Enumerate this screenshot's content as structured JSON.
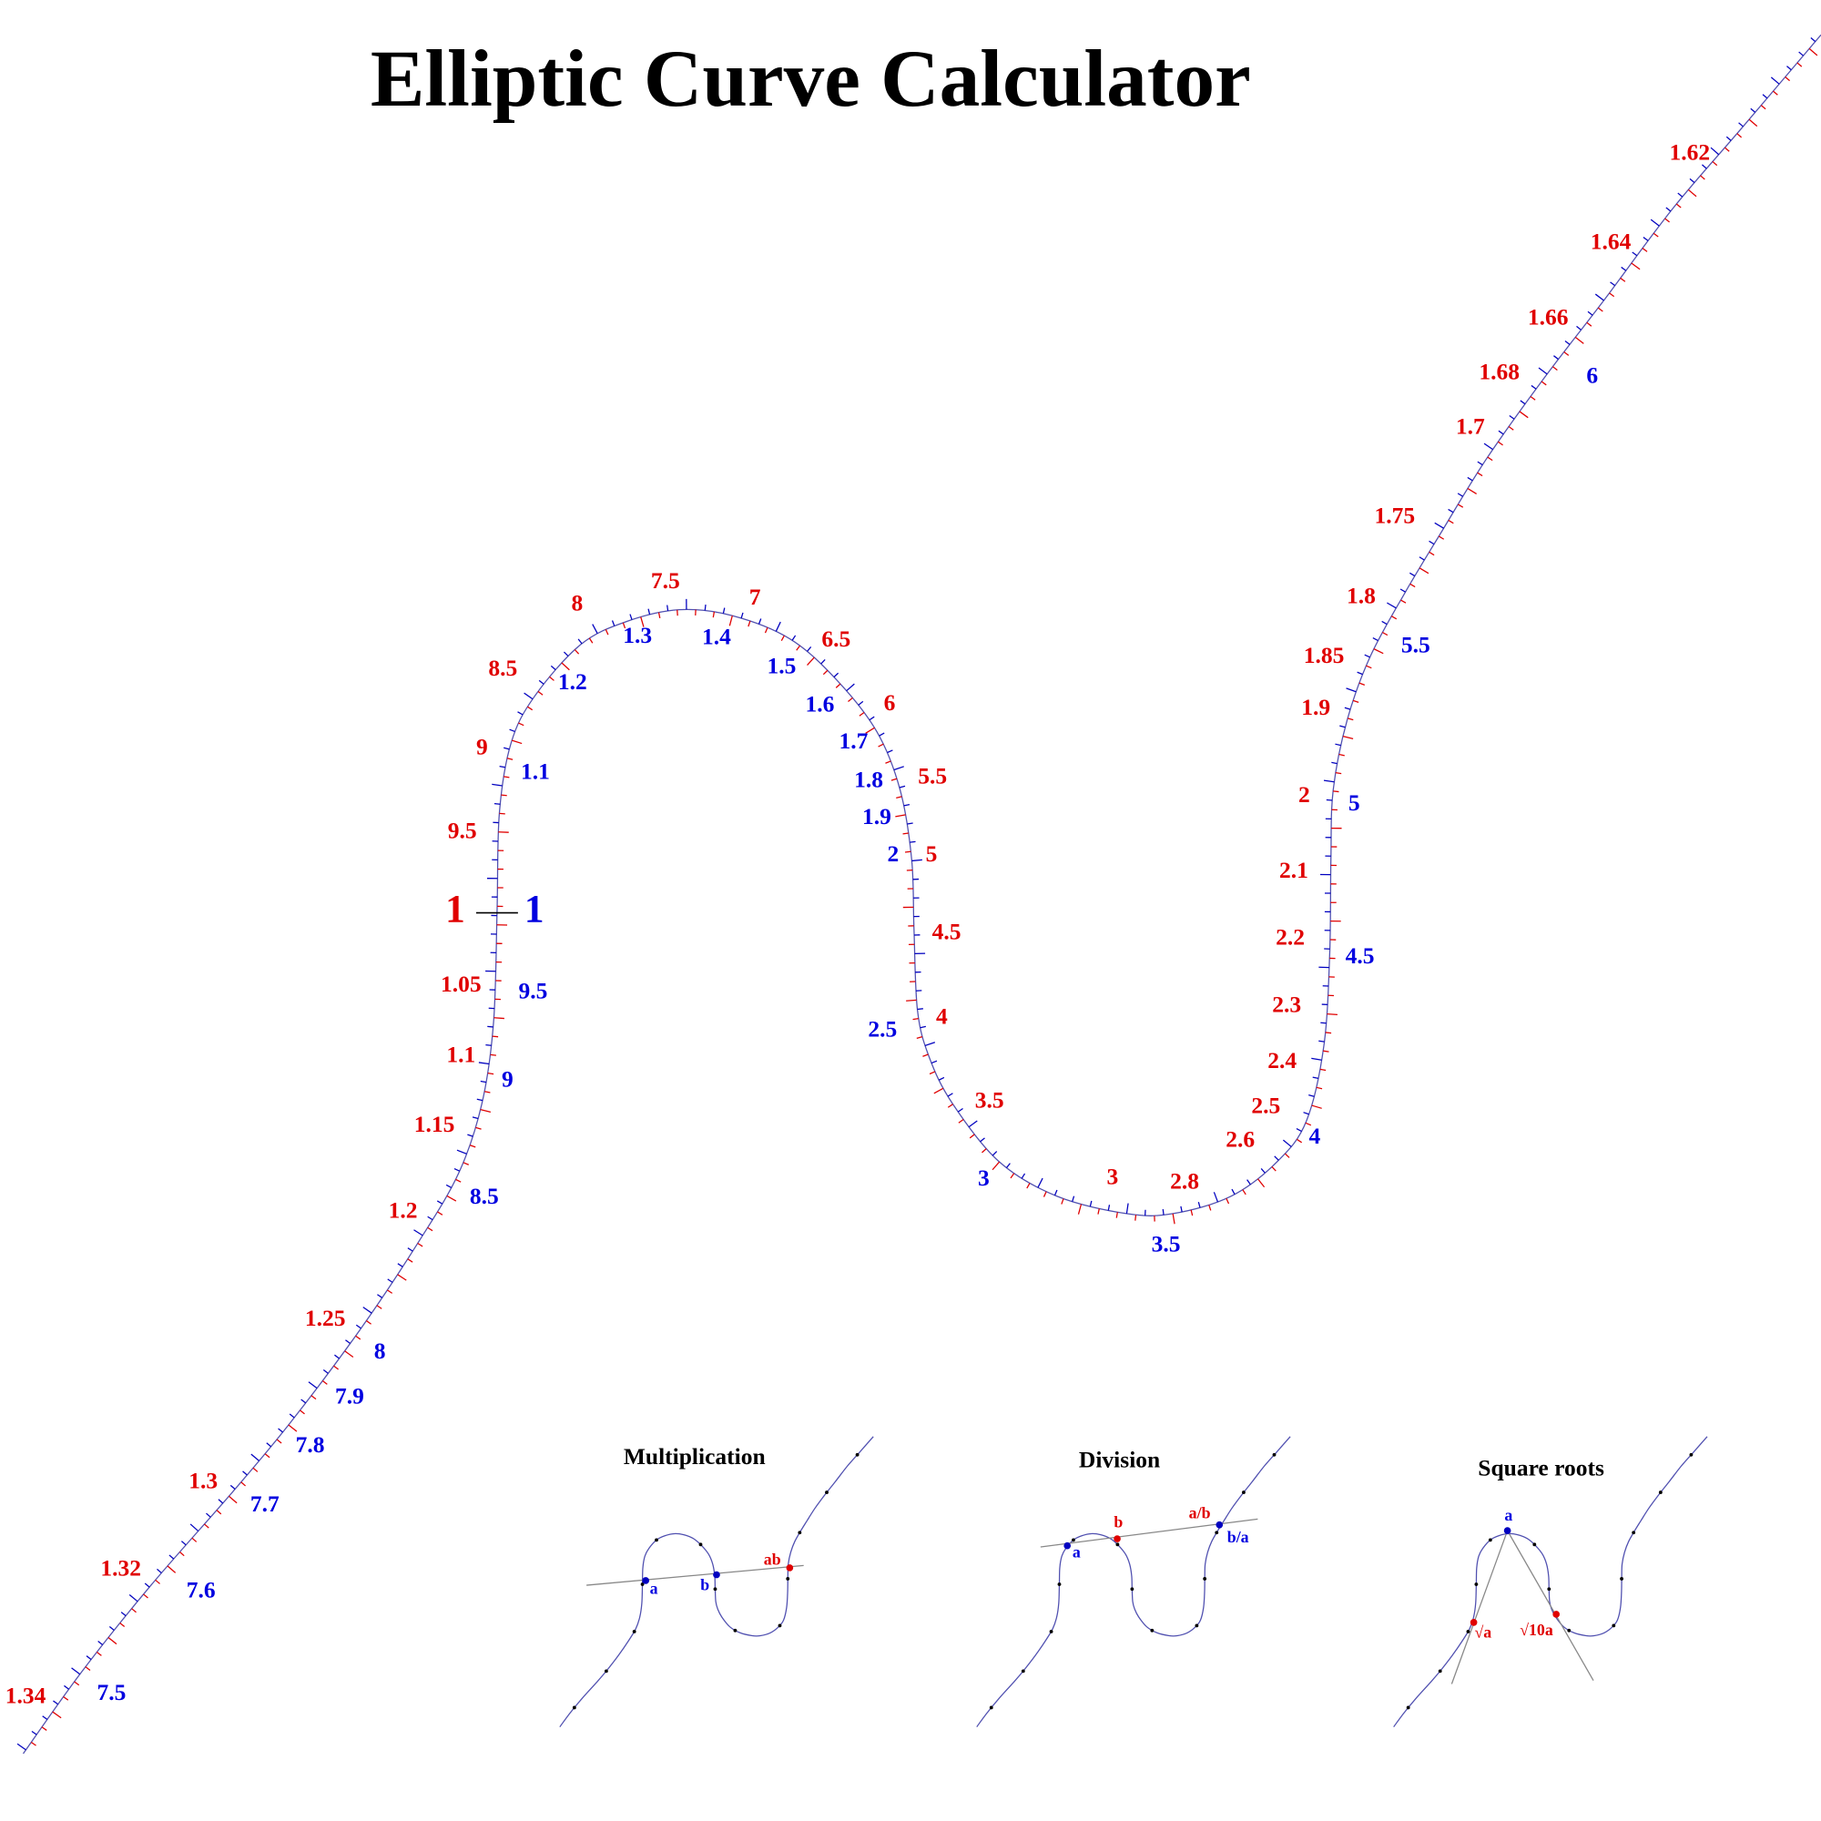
{
  "title": "Elliptic Curve Calculator",
  "scale": {
    "red_labels": [
      "1.62",
      "1.64",
      "1.66",
      "1.68",
      "1.7",
      "1.75",
      "1.8",
      "1.85",
      "1.9",
      "2",
      "2.1",
      "2.2",
      "2.3",
      "2.4",
      "2.5",
      "2.6",
      "2.8",
      "3",
      "3.5",
      "4",
      "4.5",
      "5",
      "5.5",
      "6",
      "6.5",
      "7",
      "7.5",
      "8",
      "8.5",
      "9",
      "9.5",
      "1",
      "1.05",
      "1.1",
      "1.15",
      "1.2",
      "1.25",
      "1.3",
      "1.32",
      "1.34"
    ],
    "blue_labels": [
      "6",
      "5.5",
      "5",
      "4.5",
      "4",
      "3.5",
      "3",
      "2.5",
      "2",
      "1.9",
      "1.8",
      "1.7",
      "1.6",
      "1.5",
      "1.4",
      "1.3",
      "1.2",
      "1.1",
      "1",
      "9.5",
      "9",
      "8.5",
      "8",
      "7.9",
      "7.8",
      "7.7",
      "7.6",
      "7.5"
    ]
  },
  "insets": [
    {
      "title": "Multiplication",
      "labels": [
        "a",
        "b",
        "ab"
      ]
    },
    {
      "title": "Division",
      "labels": [
        "a",
        "b",
        "a/b",
        "b/a"
      ]
    },
    {
      "title": "Square roots",
      "labels": [
        "a",
        "√a",
        "√10a"
      ]
    }
  ]
}
